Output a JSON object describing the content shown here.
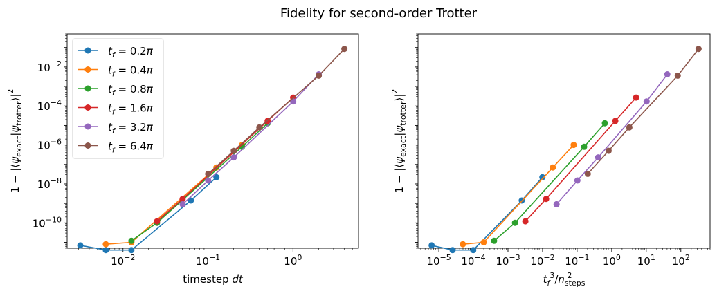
{
  "figure_title": "Fidelity for second-order Trotter",
  "colors": {
    "0.2": "#1f77b4",
    "0.4": "#ff7f0e",
    "0.8": "#2ca02c",
    "1.6": "#d62728",
    "3.2": "#9467bd",
    "6.4": "#8c564b"
  },
  "chart_data": [
    {
      "type": "line",
      "title": "",
      "xlabel": "timestep dt",
      "ylabel": "1 − |⟨ψexact|ψtrotter⟩|²",
      "xscale": "log",
      "yscale": "log",
      "xlim": [
        0.0022,
        5.9
      ],
      "ylim": [
        5e-12,
        0.5
      ],
      "x_ticks": [
        "10^-2",
        "10^-1",
        "10^0"
      ],
      "y_ticks": [
        "10^-10",
        "10^-8",
        "10^-6",
        "10^-4",
        "10^-2"
      ],
      "grid": false,
      "legend": "upper-left",
      "series": [
        {
          "name": "t_f = 0.2π",
          "key": "0.2",
          "x": [
            0.00314,
            0.00628,
            0.01257,
            0.06283,
            0.12566
          ],
          "y": [
            7e-12,
            4e-12,
            4e-12,
            1.4e-09,
            2.2e-08
          ]
        },
        {
          "name": "t_f = 0.4π",
          "key": "0.4",
          "x": [
            0.00628,
            0.01257,
            0.12566,
            0.25133
          ],
          "y": [
            8e-12,
            1e-11,
            7e-08,
            1e-06
          ]
        },
        {
          "name": "t_f = 0.8π",
          "key": "0.8",
          "x": [
            0.01257,
            0.02513,
            0.25133,
            0.50265
          ],
          "y": [
            1.2e-11,
            1e-10,
            8e-07,
            1.3e-05
          ]
        },
        {
          "name": "t_f = 1.6π",
          "key": "1.6",
          "x": [
            0.02513,
            0.05027,
            0.50265,
            1.00531
          ],
          "y": [
            1.2e-10,
            1.7e-09,
            1.7e-05,
            0.00027
          ]
        },
        {
          "name": "t_f = 3.2π",
          "key": "3.2",
          "x": [
            0.05027,
            0.10053,
            0.20106,
            1.00531,
            2.01062
          ],
          "y": [
            9e-10,
            1.5e-08,
            2.3e-07,
            0.00017,
            0.0042
          ]
        },
        {
          "name": "t_f = 6.4π",
          "key": "6.4",
          "x": [
            0.10053,
            0.20106,
            0.40212,
            2.01062,
            4.02124
          ],
          "y": [
            3.3e-08,
            5e-07,
            8e-06,
            0.0036,
            0.085
          ]
        }
      ]
    },
    {
      "type": "line",
      "title": "",
      "xlabel": "t_f^3/n_steps^2",
      "ylabel": "1 − |⟨ψexact|ψtrotter⟩|²",
      "xscale": "log",
      "yscale": "log",
      "xlim": [
        2.5e-06,
        700
      ],
      "ylim": [
        5e-12,
        0.5
      ],
      "x_ticks": [
        "10^-5",
        "10^-4",
        "10^-3",
        "10^-2",
        "10^-1",
        "10^0",
        "10^1",
        "10^2"
      ],
      "y_ticks": [
        "10^-10",
        "10^-8",
        "10^-6",
        "10^-4",
        "10^-2"
      ],
      "grid": false,
      "series": [
        {
          "key": "0.2",
          "x": [
            6.2e-06,
            2.5e-05,
            9.9e-05,
            0.0025,
            0.0099
          ],
          "y": [
            7e-12,
            4e-12,
            4e-12,
            1.4e-09,
            2.2e-08
          ]
        },
        {
          "key": "0.4",
          "x": [
            4.96e-05,
            0.000198,
            0.0198,
            0.0794
          ],
          "y": [
            8e-12,
            1e-11,
            7e-08,
            1e-06
          ]
        },
        {
          "key": "0.8",
          "x": [
            0.000397,
            0.00159,
            0.159,
            0.635
          ],
          "y": [
            1.2e-11,
            1e-10,
            8e-07,
            1.3e-05
          ]
        },
        {
          "key": "1.6",
          "x": [
            0.00318,
            0.0127,
            1.27,
            5.08
          ],
          "y": [
            1.2e-10,
            1.7e-09,
            1.7e-05,
            0.00027
          ]
        },
        {
          "key": "3.2",
          "x": [
            0.0254,
            0.102,
            0.406,
            10.2,
            40.6
          ],
          "y": [
            9e-10,
            1.5e-08,
            2.3e-07,
            0.00017,
            0.0042
          ]
        },
        {
          "key": "6.4",
          "x": [
            0.203,
            0.813,
            3.25,
            81.3,
            325
          ],
          "y": [
            3.3e-08,
            5e-07,
            8e-06,
            0.0036,
            0.085
          ]
        }
      ]
    }
  ]
}
